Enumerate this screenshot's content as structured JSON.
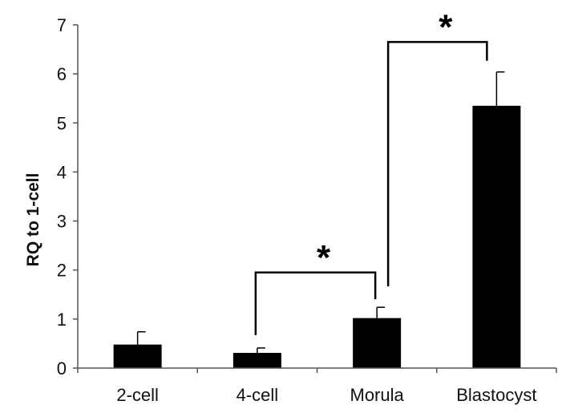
{
  "chart_data": {
    "type": "bar",
    "title": "",
    "xlabel": "",
    "ylabel": "RQ to 1-cell",
    "ylim": [
      0,
      7
    ],
    "yticks": [
      "0",
      "1",
      "2",
      "3",
      "4",
      "5",
      "6",
      "7"
    ],
    "categories": [
      "2-cell",
      "4-cell",
      "Morula",
      "Blastocyst"
    ],
    "values": [
      0.48,
      0.31,
      1.02,
      5.35
    ],
    "errors": [
      0.26,
      0.1,
      0.22,
      0.69
    ],
    "bar_color": "#000000",
    "significance": [
      {
        "from": "4-cell",
        "to": "Morula",
        "label": "*"
      },
      {
        "from": "Morula",
        "to": "Blastocyst",
        "label": "*"
      }
    ]
  }
}
